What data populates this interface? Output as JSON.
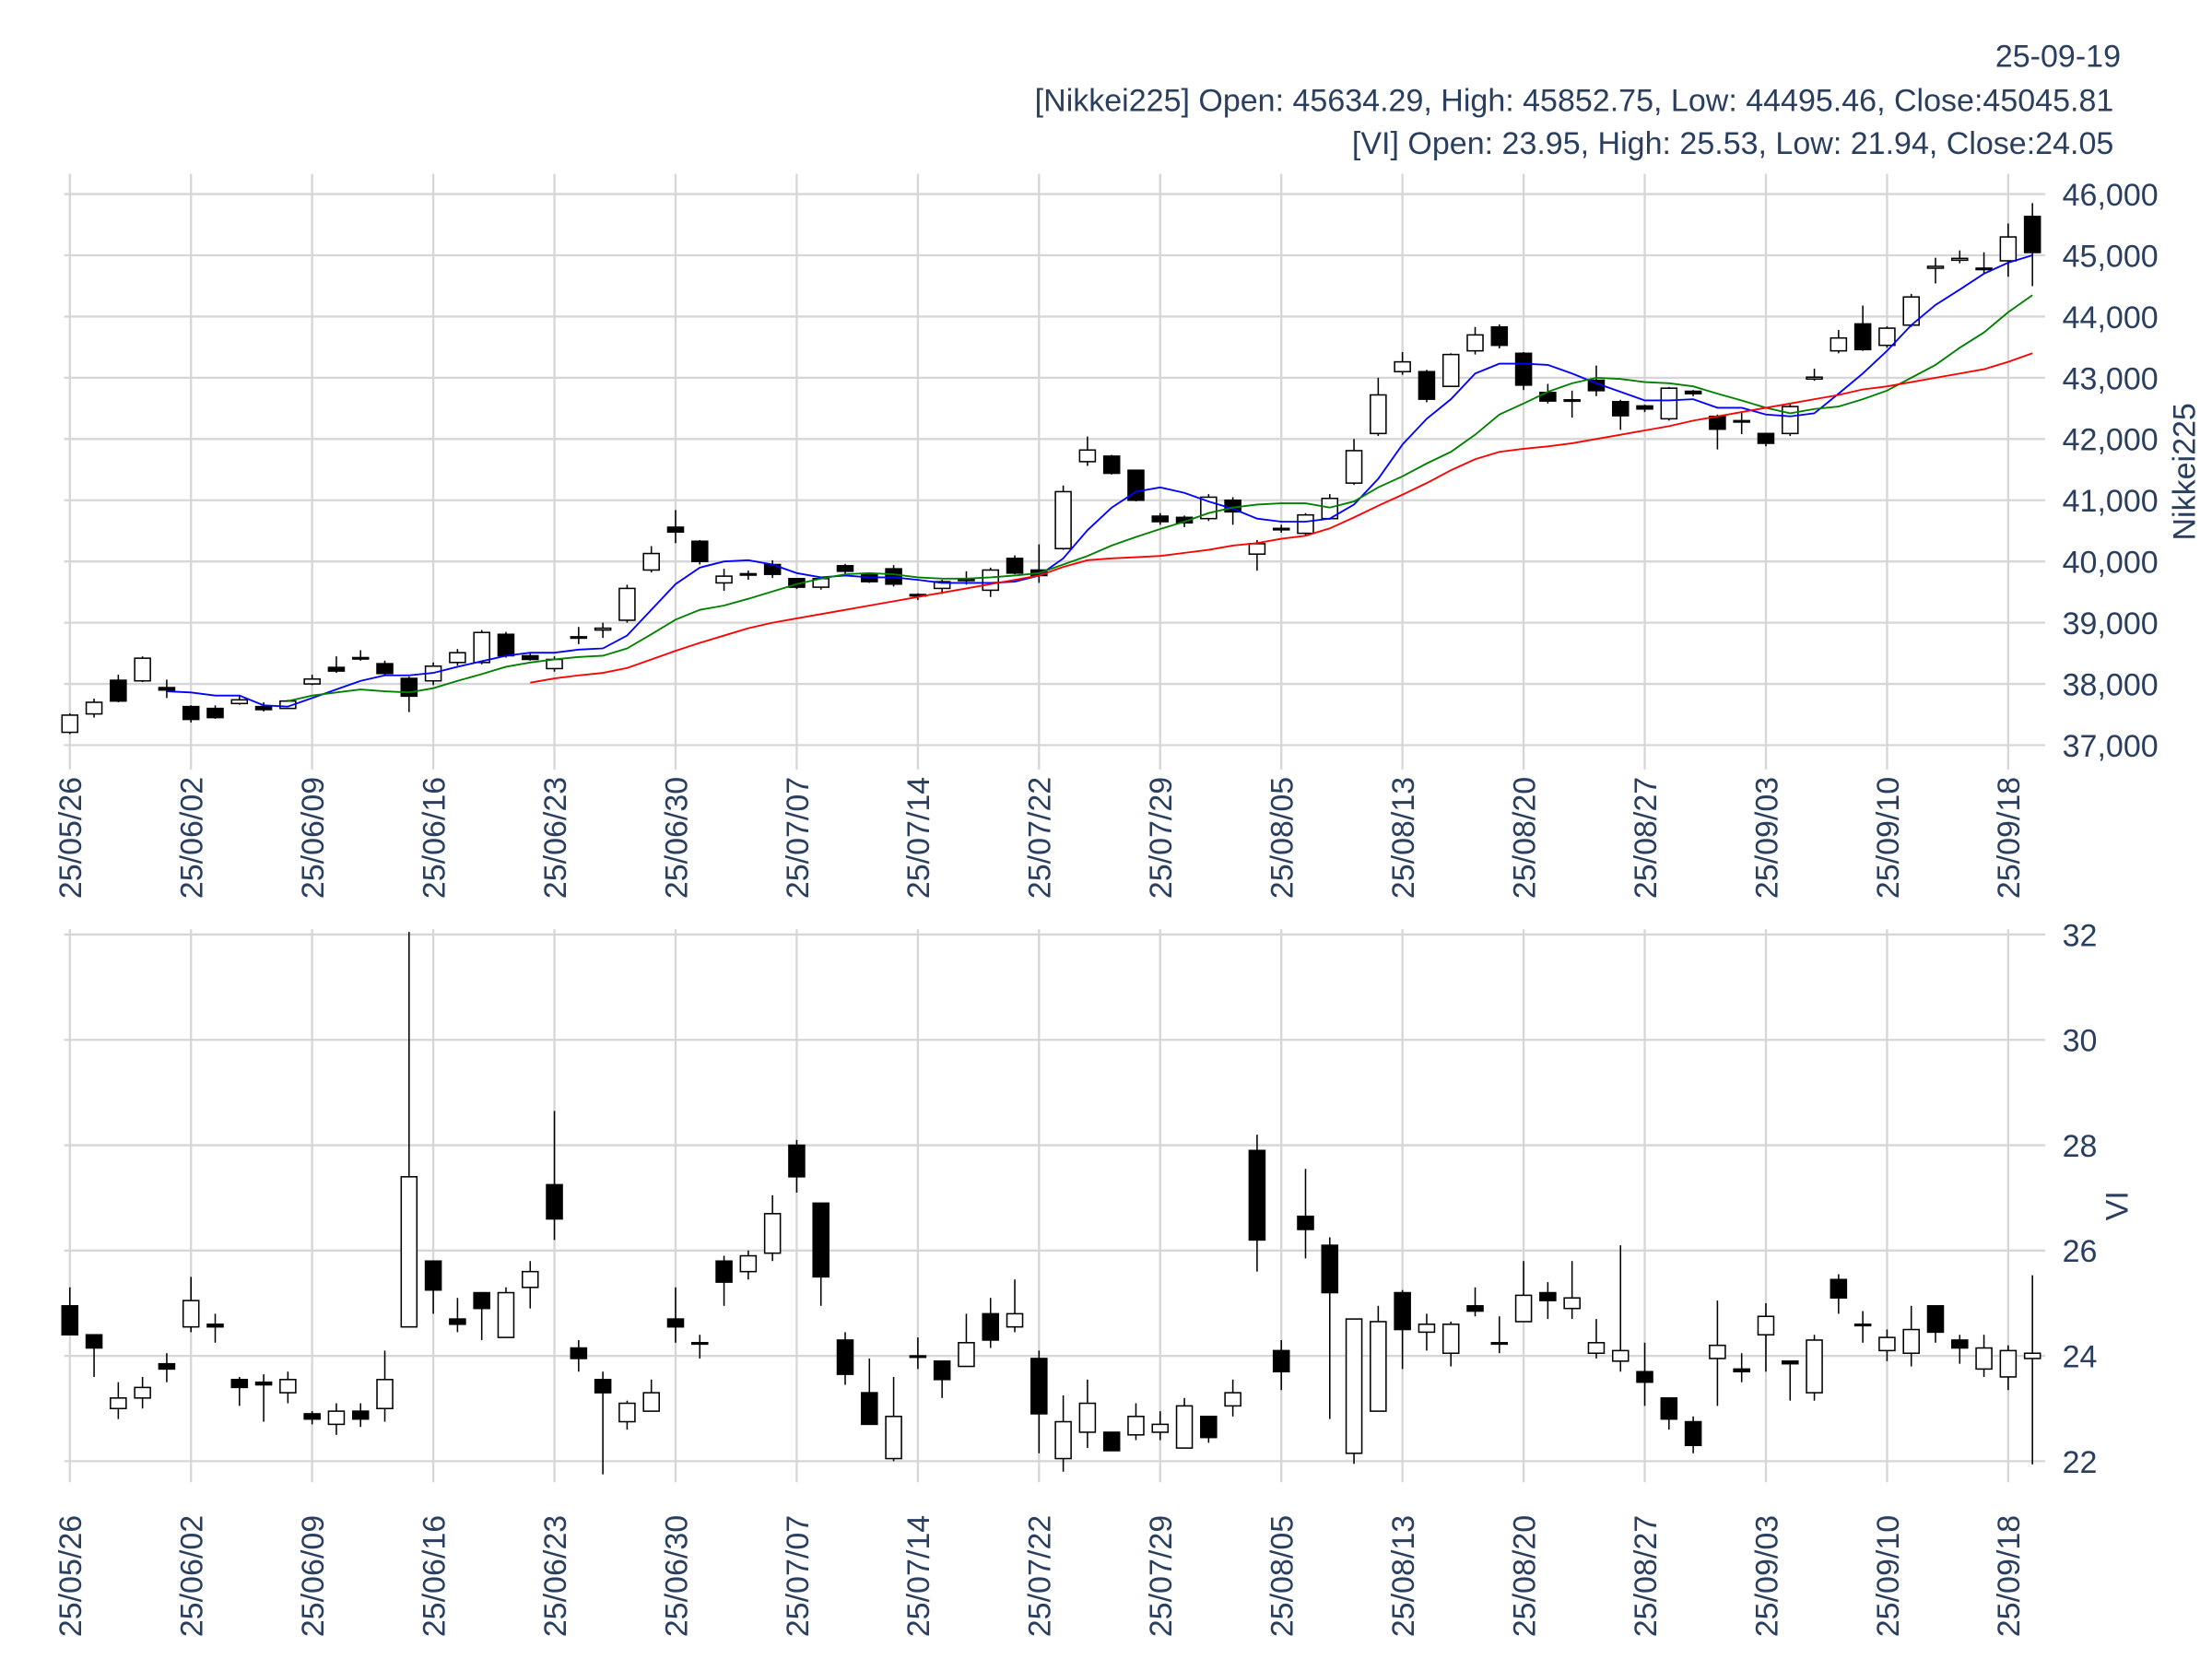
{
  "header": [
    "25-09-19",
    "[Nikkei225] Open: 45634.29, High: 45852.75, Low: 44495.46, Close:45045.81",
    "[VI] Open: 23.95, High: 25.53, Low: 21.94, Close:24.05"
  ],
  "chart_data": [
    {
      "type": "candlestick",
      "y_label": "Nikkei225",
      "grid": true,
      "up_color": "#ffffff",
      "down_color": "#000000",
      "categories": [
        "25/05/26",
        null,
        null,
        null,
        null,
        "25/06/02",
        null,
        null,
        null,
        null,
        "25/06/09",
        null,
        null,
        null,
        null,
        "25/06/16",
        null,
        null,
        null,
        null,
        "25/06/23",
        null,
        null,
        null,
        null,
        "25/06/30",
        null,
        null,
        null,
        null,
        "25/07/07",
        null,
        null,
        null,
        null,
        "25/07/14",
        null,
        null,
        null,
        null,
        "25/07/22",
        null,
        null,
        null,
        null,
        "25/07/29",
        null,
        null,
        null,
        null,
        "25/08/05",
        null,
        null,
        null,
        null,
        "25/08/13",
        null,
        null,
        null,
        null,
        "25/08/20",
        null,
        null,
        null,
        null,
        "25/08/27",
        null,
        null,
        null,
        null,
        "25/09/03",
        null,
        null,
        null,
        null,
        "25/09/10",
        null,
        null,
        null,
        null,
        "25/09/18",
        null
      ],
      "open": [
        37210,
        37510,
        38060,
        38050,
        37940,
        37630,
        37600,
        37680,
        37630,
        37600,
        38000,
        38270,
        38430,
        38330,
        38090,
        38050,
        38350,
        38350,
        38810,
        38460,
        38250,
        38760,
        38880,
        39040,
        39860,
        40560,
        40330,
        39650,
        39780,
        39950,
        39720,
        39580,
        39930,
        39790,
        39880,
        39440,
        39560,
        39710,
        39530,
        40050,
        39860,
        40210,
        41630,
        41720,
        41490,
        40740,
        40720,
        40700,
        41000,
        40120,
        40520,
        40460,
        40700,
        41280,
        42090,
        43100,
        43100,
        42860,
        43440,
        43830,
        43400,
        42760,
        42640,
        42960,
        42610,
        42540,
        42330,
        42780,
        42370,
        42300,
        42090,
        42090,
        42980,
        43440,
        43880,
        43530,
        43860,
        44790,
        44920,
        44790,
        44910,
        45634.29
      ],
      "high": [
        37520,
        37760,
        38150,
        38450,
        38070,
        37650,
        37650,
        37800,
        37700,
        37740,
        38150,
        38450,
        38550,
        38380,
        38120,
        38350,
        38570,
        38880,
        38850,
        38510,
        38450,
        38930,
        39000,
        39620,
        40250,
        40840,
        40350,
        39880,
        39850,
        40020,
        39730,
        39740,
        39960,
        39820,
        39940,
        39480,
        39700,
        39840,
        39900,
        40100,
        40280,
        41240,
        42040,
        41740,
        41500,
        40790,
        40750,
        41100,
        41050,
        40350,
        40600,
        40790,
        41100,
        42000,
        43000,
        43420,
        43130,
        43400,
        43830,
        43870,
        43420,
        42900,
        42790,
        43200,
        42640,
        42560,
        42850,
        42800,
        42400,
        42450,
        42100,
        42590,
        43150,
        43780,
        44180,
        43840,
        44370,
        44960,
        45080,
        45050,
        45520,
        45852.75
      ],
      "low": [
        37180,
        37450,
        37700,
        38030,
        37770,
        37370,
        37430,
        37660,
        37550,
        37590,
        37980,
        38180,
        38380,
        38150,
        37540,
        37980,
        38300,
        38320,
        38430,
        38380,
        38200,
        38650,
        38750,
        39000,
        39820,
        40300,
        39950,
        39520,
        39700,
        39730,
        39550,
        39540,
        39780,
        39650,
        39590,
        39370,
        39470,
        39620,
        39420,
        39790,
        39650,
        40190,
        41560,
        41420,
        40980,
        40600,
        40560,
        40660,
        40600,
        39850,
        40470,
        40410,
        40680,
        41250,
        42050,
        43050,
        42600,
        42850,
        43380,
        43480,
        42800,
        42580,
        42350,
        42700,
        42150,
        42440,
        42300,
        42700,
        41830,
        42080,
        41880,
        42050,
        42950,
        43400,
        43440,
        43490,
        43830,
        44540,
        44870,
        44690,
        44650,
        44495.46
      ],
      "close": [
        37490,
        37700,
        37720,
        38420,
        37900,
        37420,
        37450,
        37740,
        37580,
        37720,
        38080,
        38210,
        38410,
        38170,
        37800,
        38290,
        38510,
        38840,
        38460,
        38400,
        38400,
        38770,
        38910,
        39560,
        40130,
        40480,
        40000,
        39760,
        39800,
        39790,
        39580,
        39720,
        39840,
        39670,
        39630,
        39460,
        39670,
        39690,
        39860,
        39810,
        39770,
        41140,
        41820,
        41440,
        41000,
        40650,
        40630,
        41050,
        40810,
        40290,
        40540,
        40760,
        41030,
        41810,
        42720,
        43260,
        42650,
        43380,
        43700,
        43530,
        42880,
        42620,
        42620,
        42790,
        42380,
        42490,
        42830,
        42740,
        42160,
        42280,
        41930,
        42530,
        43010,
        43650,
        43460,
        43810,
        44320,
        44820,
        44950,
        44770,
        45300,
        45045.81
      ],
      "lines": [
        {
          "color": "#0000ff",
          "values": [
            null,
            null,
            null,
            null,
            37880,
            37860,
            37810,
            37810,
            37650,
            37630,
            37770,
            37910,
            38050,
            38140,
            38140,
            38180,
            38280,
            38370,
            38460,
            38510,
            38510,
            38560,
            38580,
            38790,
            39210,
            39630,
            39900,
            40000,
            40020,
            39950,
            39810,
            39740,
            39770,
            39740,
            39740,
            39700,
            39650,
            39650,
            39650,
            39670,
            39770,
            40050,
            40510,
            40880,
            41140,
            41210,
            41120,
            40980,
            40860,
            40700,
            40650,
            40650,
            40700,
            40930,
            41350,
            41910,
            42330,
            42650,
            43070,
            43230,
            43230,
            43210,
            43070,
            42910,
            42770,
            42630,
            42630,
            42650,
            42510,
            42510,
            42400,
            42370,
            42420,
            42740,
            43070,
            43440,
            43860,
            44190,
            44440,
            44700,
            44880,
            45000
          ]
        },
        {
          "color": "#008000",
          "values": [
            null,
            null,
            null,
            null,
            null,
            null,
            null,
            null,
            null,
            37720,
            37810,
            37860,
            37910,
            37880,
            37860,
            37930,
            38050,
            38160,
            38280,
            38350,
            38400,
            38440,
            38460,
            38580,
            38810,
            39050,
            39210,
            39280,
            39390,
            39510,
            39630,
            39720,
            39790,
            39810,
            39790,
            39740,
            39720,
            39720,
            39740,
            39770,
            39810,
            39950,
            40090,
            40260,
            40400,
            40530,
            40650,
            40790,
            40880,
            40930,
            40950,
            40950,
            40880,
            40980,
            41210,
            41390,
            41600,
            41790,
            42070,
            42400,
            42580,
            42770,
            42910,
            43000,
            42980,
            42930,
            42910,
            42860,
            42740,
            42630,
            42510,
            42420,
            42490,
            42530,
            42650,
            42790,
            43000,
            43210,
            43490,
            43740,
            44070,
            44350
          ]
        },
        {
          "color": "#ff0000",
          "values": [
            null,
            null,
            null,
            null,
            null,
            null,
            null,
            null,
            null,
            null,
            null,
            null,
            null,
            null,
            null,
            null,
            null,
            null,
            null,
            38020,
            38090,
            38140,
            38180,
            38260,
            38400,
            38540,
            38670,
            38790,
            38910,
            39000,
            39070,
            39140,
            39210,
            39280,
            39350,
            39420,
            39490,
            39560,
            39630,
            39700,
            39770,
            39910,
            40020,
            40050,
            40070,
            40090,
            40140,
            40190,
            40260,
            40300,
            40370,
            40420,
            40540,
            40720,
            40910,
            41090,
            41280,
            41490,
            41670,
            41790,
            41840,
            41880,
            41930,
            42000,
            42070,
            42140,
            42210,
            42300,
            42370,
            42440,
            42510,
            42580,
            42650,
            42720,
            42810,
            42860,
            42930,
            43000,
            43070,
            43140,
            43260,
            43400
          ]
        }
      ],
      "ylim": [
        36600,
        46330
      ],
      "yticks": [
        {
          "value": 37000,
          "label": "37,000"
        },
        {
          "value": 38000,
          "label": "38,000"
        },
        {
          "value": 39000,
          "label": "39,000"
        },
        {
          "value": 40000,
          "label": "40,000"
        },
        {
          "value": 41000,
          "label": "41,000"
        },
        {
          "value": 42000,
          "label": "42,000"
        },
        {
          "value": 43000,
          "label": "43,000"
        },
        {
          "value": 44000,
          "label": "44,000"
        },
        {
          "value": 45000,
          "label": "45,000"
        },
        {
          "value": 46000,
          "label": "46,000"
        }
      ]
    },
    {
      "type": "candlestick",
      "y_label": "VI",
      "grid": true,
      "up_color": "#ffffff",
      "down_color": "#000000",
      "categories": [
        "25/05/26",
        null,
        null,
        null,
        null,
        "25/06/02",
        null,
        null,
        null,
        null,
        "25/06/09",
        null,
        null,
        null,
        null,
        "25/06/16",
        null,
        null,
        null,
        null,
        "25/06/23",
        null,
        null,
        null,
        null,
        "25/06/30",
        null,
        null,
        null,
        null,
        "25/07/07",
        null,
        null,
        null,
        null,
        "25/07/14",
        null,
        null,
        null,
        null,
        "25/07/22",
        null,
        null,
        null,
        null,
        "25/07/29",
        null,
        null,
        null,
        null,
        "25/08/05",
        null,
        null,
        null,
        null,
        "25/08/13",
        null,
        null,
        null,
        null,
        "25/08/20",
        null,
        null,
        null,
        null,
        "25/08/27",
        null,
        null,
        null,
        null,
        "25/09/03",
        null,
        null,
        null,
        null,
        "25/09/10",
        null,
        null,
        null,
        null,
        "25/09/18",
        null
      ],
      "open": [
        24.95,
        24.4,
        23.0,
        23.2,
        23.85,
        24.55,
        24.6,
        23.55,
        23.5,
        23.3,
        22.9,
        22.7,
        22.95,
        23.0,
        24.55,
        25.8,
        24.7,
        25.2,
        24.35,
        25.3,
        27.25,
        24.15,
        23.55,
        22.75,
        22.95,
        24.7,
        24.25,
        25.8,
        25.6,
        25.95,
        28.0,
        26.9,
        24.3,
        23.3,
        22.05,
        24.0,
        23.9,
        23.8,
        24.8,
        24.55,
        23.95,
        22.05,
        22.55,
        22.55,
        22.5,
        22.55,
        22.25,
        22.85,
        23.05,
        27.9,
        24.1,
        26.65,
        26.1,
        22.15,
        22.95,
        25.2,
        24.45,
        24.05,
        24.95,
        24.25,
        24.65,
        25.2,
        24.9,
        24.05,
        23.9,
        23.7,
        23.2,
        22.75,
        23.95,
        23.75,
        24.4,
        23.9,
        23.3,
        25.45,
        24.6,
        24.1,
        24.05,
        24.95,
        24.3,
        23.75,
        23.6,
        23.95
      ],
      "high": [
        25.3,
        24.4,
        23.5,
        23.6,
        24.05,
        25.5,
        24.8,
        23.6,
        23.65,
        23.7,
        22.95,
        23.1,
        23.1,
        24.1,
        32.05,
        25.8,
        25.1,
        25.2,
        25.3,
        25.8,
        28.65,
        24.3,
        23.7,
        23.15,
        23.55,
        25.3,
        24.4,
        25.9,
        26.0,
        27.05,
        28.1,
        26.9,
        24.45,
        23.95,
        23.6,
        24.35,
        23.9,
        24.8,
        25.1,
        25.45,
        24.1,
        23.25,
        23.55,
        22.55,
        23.1,
        22.95,
        23.2,
        22.85,
        23.55,
        28.2,
        24.3,
        27.55,
        26.25,
        24.7,
        24.95,
        25.25,
        24.8,
        24.65,
        25.3,
        24.75,
        25.8,
        25.4,
        25.8,
        24.7,
        26.1,
        24.25,
        23.2,
        22.85,
        25.05,
        24.05,
        25.0,
        23.9,
        24.4,
        25.55,
        24.85,
        24.5,
        24.95,
        24.95,
        24.4,
        24.4,
        24.2,
        25.53
      ],
      "low": [
        24.4,
        23.6,
        22.8,
        23.0,
        23.5,
        24.45,
        24.25,
        23.05,
        22.75,
        23.1,
        22.7,
        22.5,
        22.65,
        22.75,
        24.55,
        24.8,
        24.45,
        24.3,
        24.35,
        24.9,
        26.2,
        23.7,
        21.75,
        22.6,
        22.95,
        24.25,
        23.95,
        24.95,
        25.45,
        25.8,
        27.1,
        24.95,
        23.45,
        22.7,
        22.0,
        23.75,
        23.2,
        23.8,
        24.15,
        24.45,
        22.15,
        21.8,
        22.25,
        22.2,
        22.4,
        22.4,
        22.25,
        22.35,
        22.85,
        25.6,
        23.35,
        25.85,
        22.8,
        21.95,
        22.95,
        23.75,
        24.1,
        23.8,
        24.75,
        24.05,
        24.65,
        24.7,
        24.7,
        23.95,
        23.7,
        23.05,
        22.6,
        22.15,
        23.05,
        23.5,
        23.7,
        23.15,
        23.15,
        24.8,
        24.25,
        23.9,
        23.8,
        24.25,
        23.85,
        23.6,
        23.35,
        21.94
      ],
      "close": [
        24.4,
        24.15,
        23.2,
        23.4,
        23.75,
        25.05,
        24.55,
        23.4,
        23.45,
        23.55,
        22.8,
        22.95,
        22.8,
        23.55,
        27.4,
        25.25,
        24.6,
        24.9,
        25.2,
        25.6,
        26.6,
        23.95,
        23.3,
        23.1,
        23.3,
        24.55,
        24.25,
        25.4,
        25.9,
        26.7,
        27.4,
        25.5,
        23.65,
        22.7,
        22.85,
        24.0,
        23.55,
        24.25,
        24.3,
        24.8,
        22.9,
        22.75,
        23.1,
        22.2,
        22.85,
        22.7,
        23.05,
        22.45,
        23.3,
        26.2,
        23.7,
        26.4,
        25.2,
        24.7,
        24.65,
        24.5,
        24.6,
        24.6,
        24.85,
        24.25,
        25.15,
        25.05,
        25.1,
        24.25,
        24.1,
        23.5,
        22.8,
        22.3,
        24.2,
        23.7,
        24.75,
        23.85,
        24.3,
        25.1,
        24.6,
        24.35,
        24.5,
        24.45,
        24.15,
        24.15,
        24.1,
        24.05
      ],
      "ylim": [
        21.6,
        32.1
      ],
      "yticks": [
        22,
        24,
        26,
        28,
        30,
        32
      ]
    }
  ]
}
